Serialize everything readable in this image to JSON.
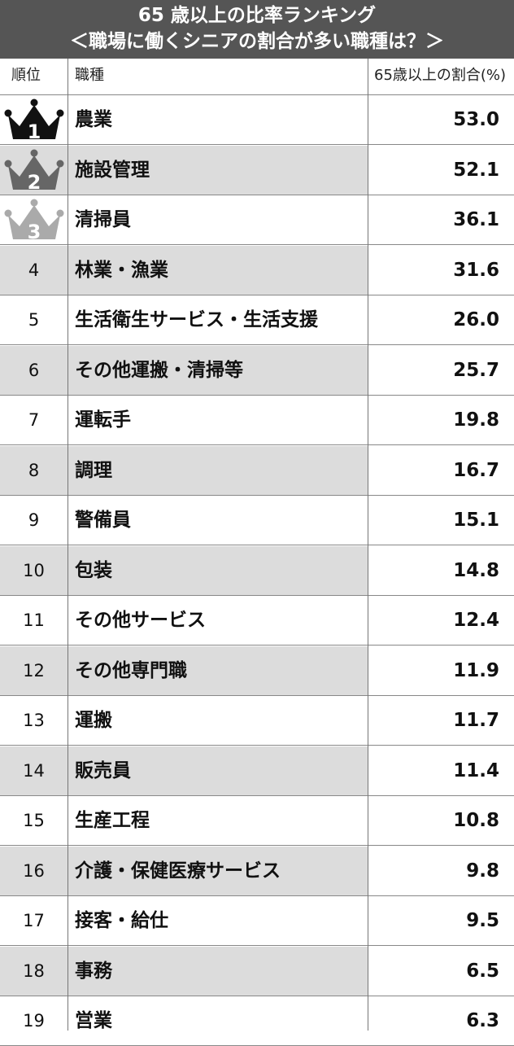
{
  "title": {
    "line1": "65 歳以上の比率ランキング",
    "line2": "＜職場に働くシニアの割合が多い職種は？＞"
  },
  "columns": {
    "rank": "順位",
    "job": "職種",
    "value": "65歳以上の割合(%)"
  },
  "colors": {
    "title_bg": "#555555",
    "row_shade": "#dcdcdc",
    "crown_gold": "#111111",
    "crown_silver": "#666666",
    "crown_bronze": "#aaaaaa"
  },
  "icons": [
    "crown-1-icon",
    "crown-2-icon",
    "crown-3-icon"
  ],
  "chart_data": {
    "type": "table",
    "title": "65 歳以上の比率ランキング ＜職場に働くシニアの割合が多い職種は？＞",
    "rows": [
      {
        "rank": "1",
        "job": "農業",
        "value": "53.0"
      },
      {
        "rank": "2",
        "job": "施設管理",
        "value": "52.1"
      },
      {
        "rank": "3",
        "job": "清掃員",
        "value": "36.1"
      },
      {
        "rank": "4",
        "job": "林業・漁業",
        "value": "31.6"
      },
      {
        "rank": "5",
        "job": "生活衛生サービス・生活支援",
        "value": "26.0"
      },
      {
        "rank": "6",
        "job": "その他運搬・清掃等",
        "value": "25.7"
      },
      {
        "rank": "7",
        "job": "運転手",
        "value": "19.8"
      },
      {
        "rank": "8",
        "job": "調理",
        "value": "16.7"
      },
      {
        "rank": "9",
        "job": "警備員",
        "value": "15.1"
      },
      {
        "rank": "10",
        "job": "包装",
        "value": "14.8"
      },
      {
        "rank": "11",
        "job": "その他サービス",
        "value": "12.4"
      },
      {
        "rank": "12",
        "job": "その他専門職",
        "value": "11.9"
      },
      {
        "rank": "13",
        "job": "運搬",
        "value": "11.7"
      },
      {
        "rank": "14",
        "job": "販売員",
        "value": "11.4"
      },
      {
        "rank": "15",
        "job": "生産工程",
        "value": "10.8"
      },
      {
        "rank": "16",
        "job": "介護・保健医療サービス",
        "value": "9.8"
      },
      {
        "rank": "17",
        "job": "接客・給仕",
        "value": "9.5"
      },
      {
        "rank": "18",
        "job": "事務",
        "value": "6.5"
      },
      {
        "rank": "19",
        "job": "営業",
        "value": "6.3"
      }
    ]
  }
}
